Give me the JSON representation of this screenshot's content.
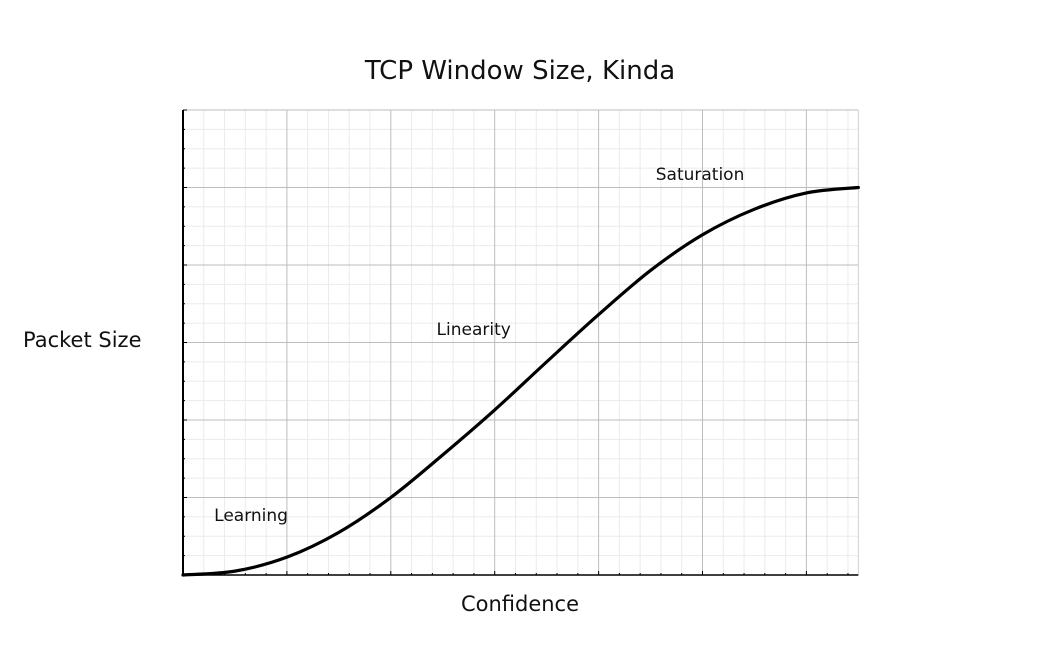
{
  "chart_data": {
    "type": "line",
    "title": "TCP Window Size, Kinda",
    "xlabel": "Confidence",
    "ylabel": "Packet Size",
    "xlim": [
      0,
      6.5
    ],
    "ylim": [
      0,
      6
    ],
    "grid": true,
    "tick_labels": false,
    "series": [
      {
        "color": "#000000",
        "x": [
          0,
          0.5,
          1,
          1.5,
          2,
          2.5,
          3,
          3.5,
          4,
          4.5,
          5,
          5.5,
          6,
          6.5
        ],
        "y": [
          0,
          0.05,
          0.23,
          0.55,
          1.0,
          1.55,
          2.13,
          2.75,
          3.36,
          3.93,
          4.39,
          4.72,
          4.93,
          5.0
        ]
      }
    ],
    "annotations": [
      {
        "text": "Learning",
        "x": 0.3,
        "y": 0.7
      },
      {
        "text": "Linearity",
        "x": 2.44,
        "y": 3.1
      },
      {
        "text": "Saturation",
        "x": 4.55,
        "y": 5.1
      }
    ]
  }
}
